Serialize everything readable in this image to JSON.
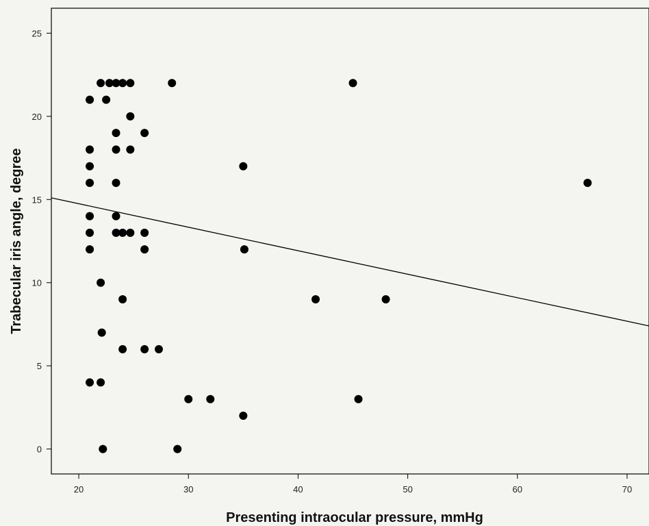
{
  "chart_data": {
    "type": "scatter",
    "title": "",
    "xlabel": "Presenting intraocular pressure, mmHg",
    "ylabel": "Trabecular iris angle, degree",
    "xlim": [
      17.5,
      72
    ],
    "ylim": [
      -1.5,
      26.5
    ],
    "xticks": [
      20,
      30,
      40,
      50,
      60,
      70
    ],
    "yticks": [
      0,
      5,
      10,
      15,
      20,
      25
    ],
    "xtick_labels": [
      "20",
      "30",
      "40",
      "50",
      "60",
      "70"
    ],
    "ytick_labels": [
      "0",
      "5",
      "10",
      "15",
      "20",
      "25"
    ],
    "grid": false,
    "legend": "none",
    "marker_color": "#000000",
    "points": [
      {
        "x": 21,
        "y": 21
      },
      {
        "x": 21,
        "y": 18
      },
      {
        "x": 21,
        "y": 17
      },
      {
        "x": 21,
        "y": 16
      },
      {
        "x": 21,
        "y": 14
      },
      {
        "x": 21,
        "y": 13
      },
      {
        "x": 21,
        "y": 12
      },
      {
        "x": 21,
        "y": 4
      },
      {
        "x": 22,
        "y": 22
      },
      {
        "x": 22,
        "y": 10
      },
      {
        "x": 22.1,
        "y": 7
      },
      {
        "x": 22,
        "y": 4
      },
      {
        "x": 22.2,
        "y": 0
      },
      {
        "x": 22.5,
        "y": 21
      },
      {
        "x": 22.8,
        "y": 22
      },
      {
        "x": 23.4,
        "y": 22
      },
      {
        "x": 23.4,
        "y": 19
      },
      {
        "x": 23.4,
        "y": 18
      },
      {
        "x": 23.4,
        "y": 16
      },
      {
        "x": 23.4,
        "y": 14
      },
      {
        "x": 23.4,
        "y": 13
      },
      {
        "x": 24,
        "y": 22
      },
      {
        "x": 24,
        "y": 13
      },
      {
        "x": 24,
        "y": 9
      },
      {
        "x": 24,
        "y": 6
      },
      {
        "x": 24.7,
        "y": 22
      },
      {
        "x": 24.7,
        "y": 20
      },
      {
        "x": 24.7,
        "y": 18
      },
      {
        "x": 24.7,
        "y": 13
      },
      {
        "x": 26,
        "y": 19
      },
      {
        "x": 26,
        "y": 13
      },
      {
        "x": 26,
        "y": 12
      },
      {
        "x": 26,
        "y": 6
      },
      {
        "x": 27.3,
        "y": 6
      },
      {
        "x": 28.5,
        "y": 22
      },
      {
        "x": 29,
        "y": 0
      },
      {
        "x": 30,
        "y": 3
      },
      {
        "x": 32,
        "y": 3
      },
      {
        "x": 35,
        "y": 17
      },
      {
        "x": 35.1,
        "y": 12
      },
      {
        "x": 35,
        "y": 2
      },
      {
        "x": 41.6,
        "y": 9
      },
      {
        "x": 45,
        "y": 22
      },
      {
        "x": 45.5,
        "y": 3
      },
      {
        "x": 48,
        "y": 9
      },
      {
        "x": 66.4,
        "y": 16
      }
    ],
    "fit_line": {
      "x": [
        17.5,
        72
      ],
      "y": [
        15.1,
        7.4
      ]
    }
  }
}
